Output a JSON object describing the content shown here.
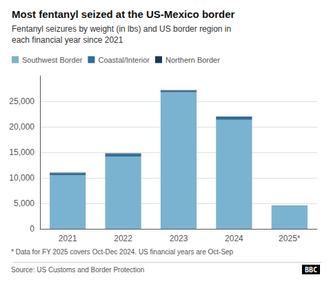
{
  "chart_data": {
    "type": "bar",
    "stacked": true,
    "title": "Most fentanyl seized at the US-Mexico border",
    "subtitle": "Fentanyl seizures by weight (in lbs) and US border region in\neach financial year since 2021",
    "categories": [
      "2021",
      "2022",
      "2023",
      "2024",
      "2025*"
    ],
    "series": [
      {
        "name": "Southwest Border",
        "color": "#7ab3d0",
        "values": [
          10500,
          14200,
          26800,
          21400,
          4540
        ]
      },
      {
        "name": "Coastal/Interior",
        "color": "#2e6e99",
        "values": [
          420,
          480,
          300,
          500,
          45
        ]
      },
      {
        "name": "Northern Border",
        "color": "#1a3a52",
        "values": [
          110,
          120,
          100,
          100,
          15
        ]
      }
    ],
    "ylim": [
      0,
      30000
    ],
    "yticks": [
      0,
      {
        "value": 5000,
        "label": "5,000"
      },
      {
        "value": 10000,
        "label": "10,000"
      },
      {
        "value": 15000,
        "label": "15,000"
      },
      {
        "value": 20000,
        "label": "20,000"
      },
      {
        "value": 25000,
        "label": "25,000"
      }
    ],
    "grid": true,
    "legend": "top",
    "footnote": "* Data for FY 2025 covers Oct-Dec 2024. US financial years are Oct-Sep",
    "source": "Source: US Customs and Border Protection",
    "annotations": [
      "BBC"
    ]
  }
}
